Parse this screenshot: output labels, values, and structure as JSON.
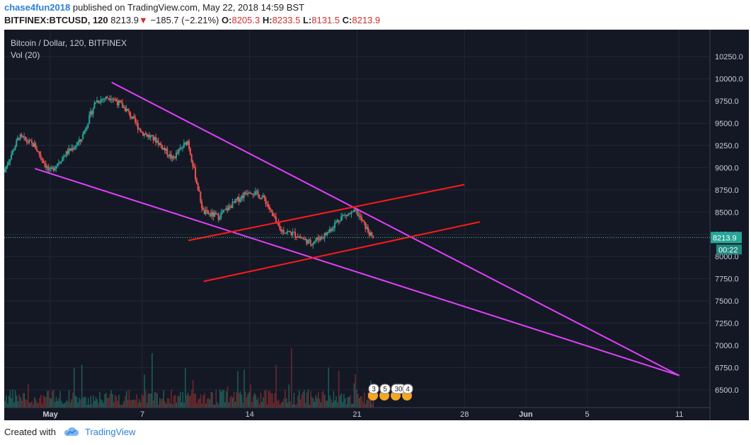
{
  "header": {
    "author": "chase4fun2018",
    "published_text": "published on TradingView.com, May 22, 2018 14:59 BST",
    "symbol": "BITFINEX:BTCUSD, 120",
    "last": "8213.9",
    "change": "−185.7 (−2.21%)",
    "o_label": "O:",
    "o_value": "8205.3",
    "h_label": "H:",
    "h_value": "8233.5",
    "l_label": "L:",
    "l_value": "8131.5",
    "c_label": "C:",
    "c_value": "8213.9"
  },
  "legend": {
    "title": "Bitcoin / Dollar, 120, BITFINEX",
    "volume": "Vol (20)"
  },
  "footer": {
    "created_with": "Created with",
    "brand": "TradingView"
  },
  "event_badges": [
    "3",
    "5",
    "30",
    "4"
  ],
  "chart_data": {
    "type": "candlestick",
    "symbol": "BITFINEX:BTCUSD",
    "interval": "120",
    "ylim": [
      6300,
      10450
    ],
    "y_ticks": [
      6500,
      6750,
      7000,
      7250,
      7500,
      7750,
      8000,
      8250,
      8500,
      8750,
      9000,
      9250,
      9500,
      9750,
      10000,
      10250
    ],
    "x_range": [
      "2018-04-28",
      "2018-06-13"
    ],
    "x_ticks": [
      {
        "date": "2018-05-01",
        "label": "May"
      },
      {
        "date": "2018-05-07",
        "label": "7"
      },
      {
        "date": "2018-05-14",
        "label": "14"
      },
      {
        "date": "2018-05-21",
        "label": "21"
      },
      {
        "date": "2018-05-28",
        "label": "28"
      },
      {
        "date": "2018-06-01",
        "label": "Jun"
      },
      {
        "date": "2018-06-05",
        "label": "5"
      },
      {
        "date": "2018-06-11",
        "label": "11"
      }
    ],
    "current_price": {
      "value": 8213.9,
      "label": "8213.9",
      "countdown": "00:22"
    },
    "price_path": [
      [
        "2018-04-28",
        8950
      ],
      [
        "2018-04-29",
        9350
      ],
      [
        "2018-04-30",
        9250
      ],
      [
        "2018-05-01",
        8950
      ],
      [
        "2018-05-02",
        9150
      ],
      [
        "2018-05-03",
        9300
      ],
      [
        "2018-05-04",
        9750
      ],
      [
        "2018-05-05",
        9800
      ],
      [
        "2018-05-06",
        9650
      ],
      [
        "2018-05-07",
        9400
      ],
      [
        "2018-05-08",
        9300
      ],
      [
        "2018-05-09",
        9100
      ],
      [
        "2018-05-10",
        9300
      ],
      [
        "2018-05-11",
        8500
      ],
      [
        "2018-05-12",
        8450
      ],
      [
        "2018-05-13",
        8600
      ],
      [
        "2018-05-14",
        8750
      ],
      [
        "2018-05-15",
        8650
      ],
      [
        "2018-05-16",
        8300
      ],
      [
        "2018-05-17",
        8250
      ],
      [
        "2018-05-18",
        8150
      ],
      [
        "2018-05-19",
        8250
      ],
      [
        "2018-05-20",
        8450
      ],
      [
        "2018-05-21",
        8500
      ],
      [
        "2018-05-22",
        8213.9
      ]
    ],
    "volume_scale_max": 1000,
    "trendlines": [
      {
        "color": "#e040fb",
        "from": [
          "2018-04-30",
          8990
        ],
        "to": [
          "2018-06-11",
          6660
        ]
      },
      {
        "color": "#e040fb",
        "from": [
          "2018-05-05",
          9960
        ],
        "to": [
          "2018-06-11",
          6660
        ]
      },
      {
        "color": "#ff1a1a",
        "from": [
          "2018-05-10",
          8180
        ],
        "to": [
          "2018-05-28",
          8810
        ]
      },
      {
        "color": "#ff1a1a",
        "from": [
          "2018-05-11",
          7720
        ],
        "to": [
          "2018-05-29",
          8390
        ]
      }
    ]
  }
}
